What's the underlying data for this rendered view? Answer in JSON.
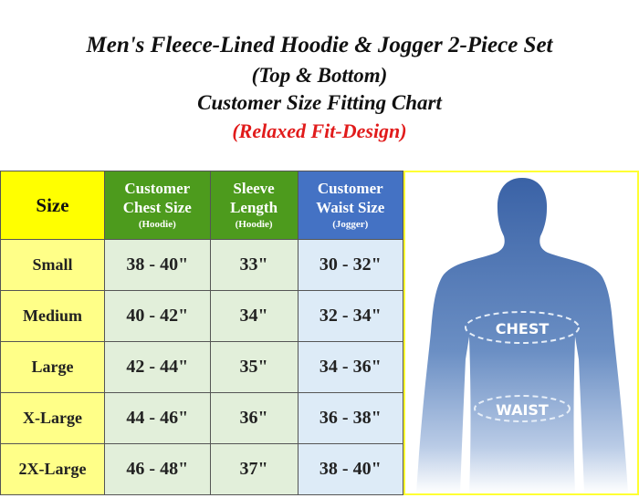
{
  "title": {
    "line1": "Men's Fleece-Lined Hoodie & Jogger 2-Piece Set",
    "line2": "(Top & Bottom)",
    "line3": "Customer Size Fitting Chart",
    "line4": "(Relaxed Fit-Design)"
  },
  "colors": {
    "size_header": "#ffff00",
    "green_header": "#4d9b1d",
    "blue_header": "#4472c4",
    "subtitle_red": "#e11b1b"
  },
  "table": {
    "headers": [
      {
        "label": "Size",
        "sub": ""
      },
      {
        "label": "Customer Chest Size",
        "sub": "(Hoodie)"
      },
      {
        "label": "Sleeve Length",
        "sub": "(Hoodie)"
      },
      {
        "label": "Customer Waist Size",
        "sub": "(Jogger)"
      }
    ],
    "rows": [
      [
        "Small",
        "38 - 40\"",
        "33\"",
        "30 - 32\""
      ],
      [
        "Medium",
        "40 - 42\"",
        "34\"",
        "32 - 34\""
      ],
      [
        "Large",
        "42 - 44\"",
        "35\"",
        "34 - 36\""
      ],
      [
        "X-Large",
        "44 - 46\"",
        "36\"",
        "36 - 38\""
      ],
      [
        "2X-Large",
        "46 - 48\"",
        "37\"",
        "38 - 40\""
      ]
    ]
  },
  "figure": {
    "chest_label": "CHEST",
    "waist_label": "WAIST"
  }
}
